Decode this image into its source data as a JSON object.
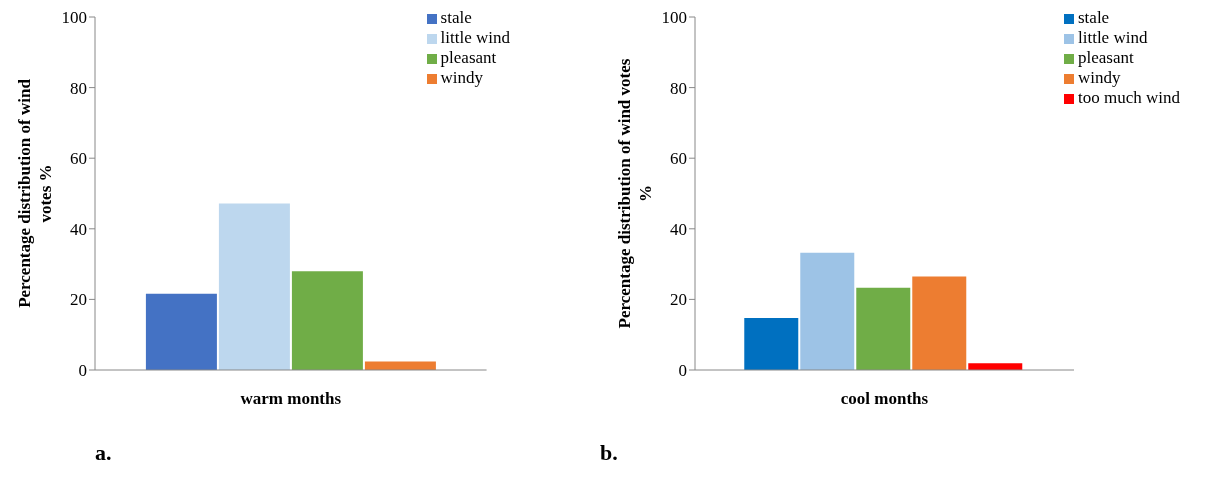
{
  "chart_data": [
    {
      "type": "bar",
      "categories": [
        "warm months"
      ],
      "ylabel": "Percentage distribution of wind votes %",
      "ylim": [
        0,
        100
      ],
      "yticks": [
        0,
        20,
        40,
        60,
        80,
        100
      ],
      "grid": false,
      "legend": "top right",
      "annotations": [
        "a."
      ],
      "series": [
        {
          "name": "stale",
          "color": "#4472c4",
          "values": [
            21.6
          ]
        },
        {
          "name": "little wind",
          "color": "#bdd7ee",
          "values": [
            47.2
          ]
        },
        {
          "name": "pleasant",
          "color": "#70ad47",
          "values": [
            28
          ]
        },
        {
          "name": "windy",
          "color": "#ed7d31",
          "values": [
            2.4
          ]
        }
      ]
    },
    {
      "type": "bar",
      "categories": [
        "cool months"
      ],
      "ylabel": "Percentage distribution of wind votes %",
      "ylim": [
        0,
        100
      ],
      "yticks": [
        0,
        20,
        40,
        60,
        80,
        100
      ],
      "grid": false,
      "legend": "top right",
      "annotations": [
        "b."
      ],
      "series": [
        {
          "name": "stale",
          "color": "#0070c0",
          "values": [
            14.7
          ]
        },
        {
          "name": "little wind",
          "color": "#9dc3e6",
          "values": [
            33.2
          ]
        },
        {
          "name": "pleasant",
          "color": "#70ad47",
          "values": [
            23.3
          ]
        },
        {
          "name": "windy",
          "color": "#ed7d31",
          "values": [
            26.5
          ]
        },
        {
          "name": "too much wind",
          "color": "#ff0000",
          "values": [
            1.9
          ]
        }
      ]
    }
  ]
}
